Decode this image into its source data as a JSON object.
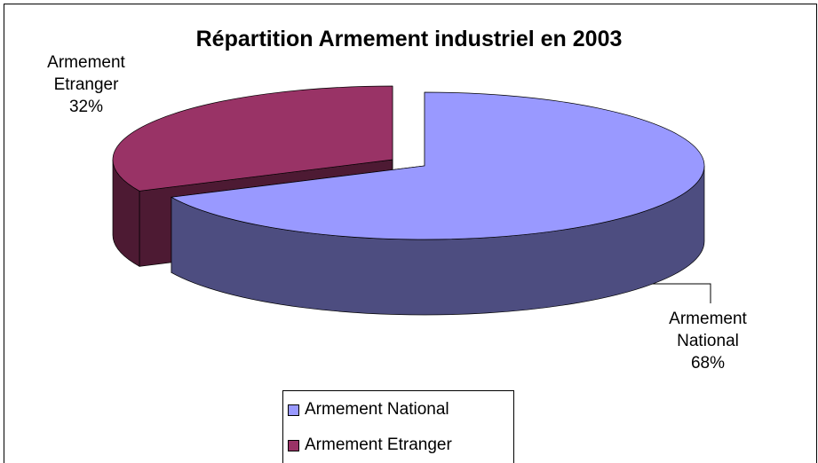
{
  "chart_data": {
    "type": "pie3d",
    "title": "Répartition Armement industriel en 2003",
    "categories": [
      "Armement National",
      "Armement Etranger"
    ],
    "values": [
      68,
      32
    ],
    "value_labels": [
      "68%",
      "32%"
    ],
    "colors": [
      "#9999ff",
      "#993366"
    ],
    "legend": "bottom"
  }
}
